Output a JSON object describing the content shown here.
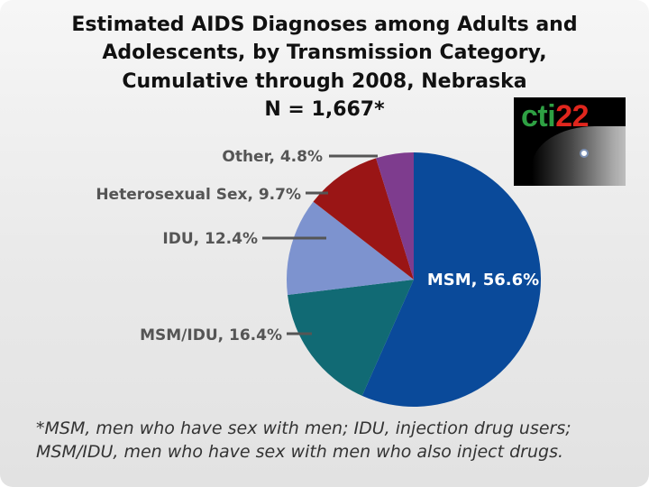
{
  "title_lines": [
    "Estimated AIDS Diagnoses among Adults and",
    "Adolescents, by Transmission Category,",
    "Cumulative through 2008, Nebraska",
    "N = 1,667*"
  ],
  "logo": {
    "text_green": "cti",
    "text_red": "22"
  },
  "chart_data": {
    "type": "pie",
    "title": "Estimated AIDS Diagnoses among Adults and Adolescents, by Transmission Category, Cumulative through 2008, Nebraska",
    "subtitle": "N = 1,667*",
    "slices": [
      {
        "name": "MSM",
        "value": 56.6,
        "label": "MSM, 56.6%",
        "color": "#0a4a9a"
      },
      {
        "name": "MSM/IDU",
        "value": 16.4,
        "label": "MSM/IDU, 16.4%",
        "color": "#116a74"
      },
      {
        "name": "IDU",
        "value": 12.4,
        "label": "IDU, 12.4%",
        "color": "#7d93cf"
      },
      {
        "name": "Heterosexual Sex",
        "value": 9.7,
        "label": "Heterosexual Sex, 9.7%",
        "color": "#9a1515"
      },
      {
        "name": "Other",
        "value": 4.8,
        "label": "Other, 4.8%",
        "color": "#7e3c8e"
      }
    ],
    "start_angle": "12 o'clock",
    "direction": "clockwise",
    "legend": "none"
  },
  "colors": {
    "label_text": "#555555",
    "inside_label_text": "#ffffff",
    "leader_line": "#555555"
  },
  "footnote_lines": [
    "*MSM, men who have sex with men; IDU, injection drug users;",
    "MSM/IDU, men who have sex with men who also inject drugs."
  ]
}
